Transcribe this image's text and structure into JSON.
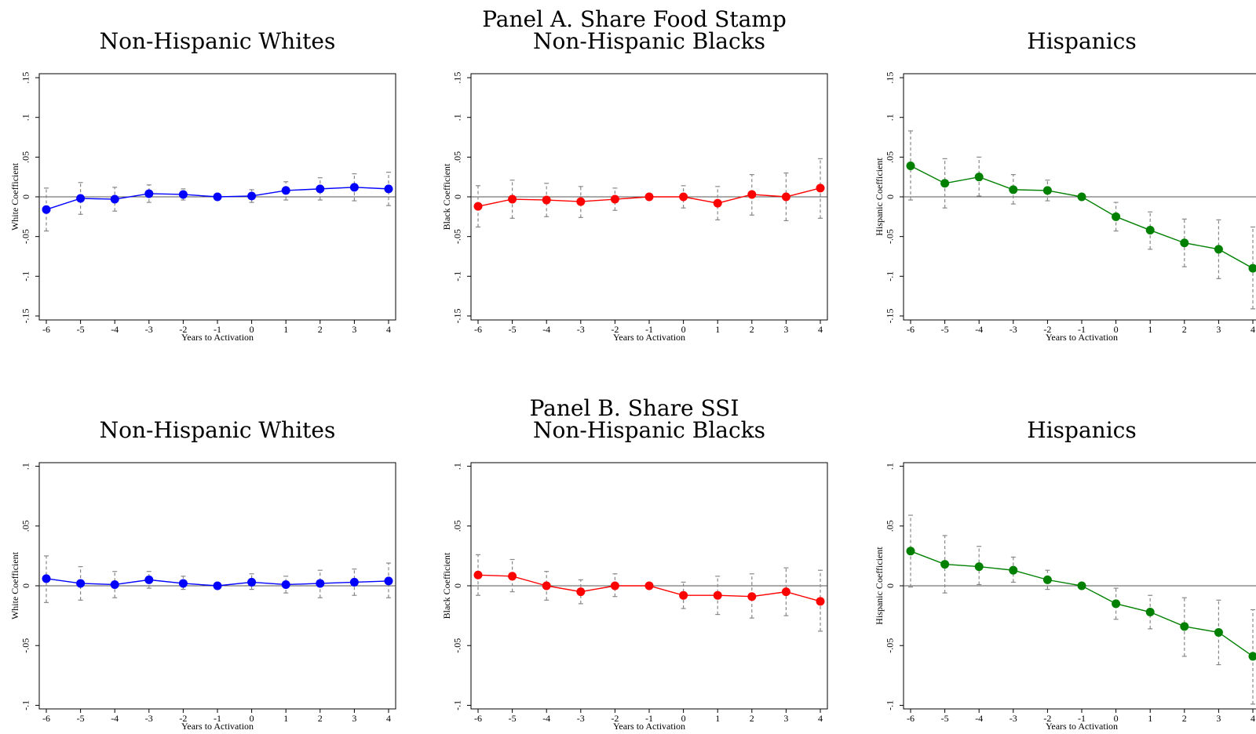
{
  "panels": [
    {
      "title": "Panel A. Share Food Stamp"
    },
    {
      "title": "Panel B. Share SSI"
    }
  ],
  "chart_data": [
    {
      "type": "line",
      "panel": "Panel A. Share Food Stamp",
      "title": "Non-Hispanic Whites",
      "xlabel": "Years to Activation",
      "ylabel": "White Coefficient",
      "x": [
        -6,
        -5,
        -4,
        -3,
        -2,
        -1,
        0,
        1,
        2,
        3,
        4
      ],
      "xticks": [
        "-6",
        "-5",
        "-4",
        "-3",
        "-2",
        "-1",
        "0",
        "1",
        "2",
        "3",
        "4"
      ],
      "ylim": [
        -0.155,
        0.155
      ],
      "yticks": [
        -0.15,
        -0.1,
        -0.05,
        0,
        0.05,
        0.1,
        0.15
      ],
      "ytick_labels": [
        "-.15",
        "-.1",
        "-.05",
        "0",
        ".05",
        ".1",
        ".15"
      ],
      "color": "#0000ff",
      "values": [
        -0.016,
        -0.002,
        -0.003,
        0.004,
        0.003,
        0.0,
        0.001,
        0.008,
        0.01,
        0.012,
        0.01
      ],
      "ci_low": [
        -0.043,
        -0.022,
        -0.018,
        -0.007,
        -0.004,
        0.0,
        -0.007,
        -0.004,
        -0.004,
        -0.005,
        -0.011
      ],
      "ci_high": [
        0.011,
        0.018,
        0.012,
        0.015,
        0.01,
        0.0,
        0.009,
        0.019,
        0.024,
        0.029,
        0.031
      ]
    },
    {
      "type": "line",
      "panel": "Panel A. Share Food Stamp",
      "title": "Non-Hispanic Blacks",
      "xlabel": "Years to Activation",
      "ylabel": "Black Coefficient",
      "x": [
        -6,
        -5,
        -4,
        -3,
        -2,
        -1,
        0,
        1,
        2,
        3,
        4
      ],
      "xticks": [
        "-6",
        "-5",
        "-4",
        "-3",
        "-2",
        "-1",
        "0",
        "1",
        "2",
        "3",
        "4"
      ],
      "ylim": [
        -0.155,
        0.155
      ],
      "yticks": [
        -0.15,
        -0.1,
        -0.05,
        0,
        0.05,
        0.1,
        0.15
      ],
      "ytick_labels": [
        "-.15",
        "-.1",
        "-.05",
        "0",
        ".05",
        ".1",
        ".15"
      ],
      "color": "#ff0000",
      "values": [
        -0.012,
        -0.003,
        -0.004,
        -0.006,
        -0.003,
        0.0,
        0.0,
        -0.008,
        0.003,
        0.0,
        0.011
      ],
      "ci_low": [
        -0.038,
        -0.027,
        -0.025,
        -0.026,
        -0.017,
        0.0,
        -0.014,
        -0.029,
        -0.023,
        -0.03,
        -0.027
      ],
      "ci_high": [
        0.014,
        0.021,
        0.017,
        0.013,
        0.011,
        0.0,
        0.014,
        0.013,
        0.028,
        0.03,
        0.048
      ]
    },
    {
      "type": "line",
      "panel": "Panel A. Share Food Stamp",
      "title": "Hispanics",
      "xlabel": "Years to Activation",
      "ylabel": "Hispanic Coefficient",
      "x": [
        -6,
        -5,
        -4,
        -3,
        -2,
        -1,
        0,
        1,
        2,
        3,
        4
      ],
      "xticks": [
        "-6",
        "-5",
        "-4",
        "-3",
        "-2",
        "-1",
        "0",
        "1",
        "2",
        "3",
        "4"
      ],
      "ylim": [
        -0.155,
        0.155
      ],
      "yticks": [
        -0.15,
        -0.1,
        -0.05,
        0,
        0.05,
        0.1,
        0.15
      ],
      "ytick_labels": [
        "-.15",
        "-.1",
        "-.05",
        "0",
        ".05",
        ".1",
        ".15"
      ],
      "color": "#008000",
      "values": [
        0.039,
        0.017,
        0.025,
        0.009,
        0.008,
        0.0,
        -0.025,
        -0.042,
        -0.058,
        -0.066,
        -0.09
      ],
      "ci_low": [
        -0.004,
        -0.014,
        0.001,
        -0.009,
        -0.005,
        0.0,
        -0.043,
        -0.066,
        -0.088,
        -0.103,
        -0.141
      ],
      "ci_high": [
        0.083,
        0.048,
        0.05,
        0.028,
        0.021,
        0.0,
        -0.007,
        -0.019,
        -0.028,
        -0.029,
        -0.038
      ]
    },
    {
      "type": "line",
      "panel": "Panel B. Share SSI",
      "title": "Non-Hispanic Whites",
      "xlabel": "Years to Activation",
      "ylabel": "White Coefficient",
      "x": [
        -6,
        -5,
        -4,
        -3,
        -2,
        -1,
        0,
        1,
        2,
        3,
        4
      ],
      "xticks": [
        "-6",
        "-5",
        "-4",
        "-3",
        "-2",
        "-1",
        "0",
        "1",
        "2",
        "3",
        "4"
      ],
      "ylim": [
        -0.103,
        0.103
      ],
      "yticks": [
        -0.1,
        -0.05,
        0,
        0.05,
        0.1
      ],
      "ytick_labels": [
        "-.1",
        "-.05",
        "0",
        ".05",
        ".1"
      ],
      "color": "#0000ff",
      "values": [
        0.006,
        0.002,
        0.001,
        0.005,
        0.002,
        0.0,
        0.003,
        0.001,
        0.002,
        0.003,
        0.004
      ],
      "ci_low": [
        -0.014,
        -0.012,
        -0.01,
        -0.002,
        -0.003,
        0.0,
        -0.003,
        -0.006,
        -0.01,
        -0.008,
        -0.01
      ],
      "ci_high": [
        0.025,
        0.016,
        0.012,
        0.012,
        0.008,
        0.0,
        0.01,
        0.008,
        0.013,
        0.014,
        0.019
      ]
    },
    {
      "type": "line",
      "panel": "Panel B. Share SSI",
      "title": "Non-Hispanic Blacks",
      "xlabel": "Years to Activation",
      "ylabel": "Black Coefficient",
      "x": [
        -6,
        -5,
        -4,
        -3,
        -2,
        -1,
        0,
        1,
        2,
        3,
        4
      ],
      "xticks": [
        "-6",
        "-5",
        "-4",
        "-3",
        "-2",
        "-1",
        "0",
        "1",
        "2",
        "3",
        "4"
      ],
      "ylim": [
        -0.103,
        0.103
      ],
      "yticks": [
        -0.1,
        -0.05,
        0,
        0.05,
        0.1
      ],
      "ytick_labels": [
        "-.1",
        "-.05",
        "0",
        ".05",
        ".1"
      ],
      "color": "#ff0000",
      "values": [
        0.009,
        0.008,
        0.0,
        -0.005,
        0.0,
        0.0,
        -0.008,
        -0.008,
        -0.009,
        -0.005,
        -0.013
      ],
      "ci_low": [
        -0.008,
        -0.005,
        -0.012,
        -0.015,
        -0.009,
        0.0,
        -0.019,
        -0.024,
        -0.027,
        -0.025,
        -0.038
      ],
      "ci_high": [
        0.026,
        0.022,
        0.012,
        0.005,
        0.01,
        0.0,
        0.003,
        0.008,
        0.01,
        0.015,
        0.013
      ]
    },
    {
      "type": "line",
      "panel": "Panel B. Share SSI",
      "title": "Hispanics",
      "xlabel": "Years to Activation",
      "ylabel": "Hispanic Coefficient",
      "x": [
        -6,
        -5,
        -4,
        -3,
        -2,
        -1,
        0,
        1,
        2,
        3,
        4
      ],
      "xticks": [
        "-6",
        "-5",
        "-4",
        "-3",
        "-2",
        "-1",
        "0",
        "1",
        "2",
        "3",
        "4"
      ],
      "ylim": [
        -0.103,
        0.103
      ],
      "yticks": [
        -0.1,
        -0.05,
        0,
        0.05,
        0.1
      ],
      "ytick_labels": [
        "-.1",
        "-.05",
        "0",
        ".05",
        ".1"
      ],
      "color": "#008000",
      "values": [
        0.029,
        0.018,
        0.016,
        0.013,
        0.005,
        0.0,
        -0.015,
        -0.022,
        -0.034,
        -0.039,
        -0.059
      ],
      "ci_low": [
        -0.001,
        -0.006,
        0.001,
        0.003,
        -0.003,
        0.0,
        -0.028,
        -0.036,
        -0.059,
        -0.066,
        -0.099
      ],
      "ci_high": [
        0.059,
        0.042,
        0.033,
        0.024,
        0.013,
        0.0,
        -0.002,
        -0.008,
        -0.01,
        -0.012,
        -0.02
      ]
    }
  ]
}
